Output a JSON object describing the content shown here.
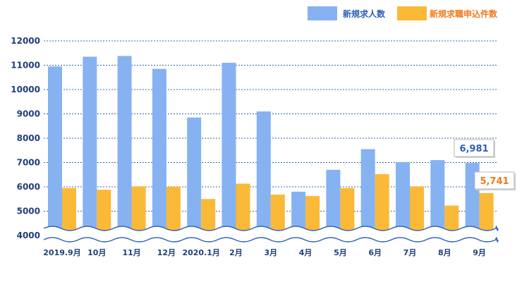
{
  "chart_data": {
    "type": "bar",
    "categories": [
      "2019.9月",
      "10月",
      "11月",
      "12月",
      "2020.1月",
      "2月",
      "3月",
      "4月",
      "5月",
      "6月",
      "7月",
      "8月",
      "9月"
    ],
    "series": [
      {
        "name": "新規求人数",
        "color": "#86b2f2",
        "values": [
          10950,
          11350,
          11380,
          10850,
          8850,
          11100,
          9100,
          5800,
          6700,
          7550,
          7020,
          7100,
          6981
        ]
      },
      {
        "name": "新規求職申込件数",
        "color": "#fbb938",
        "values": [
          5950,
          5880,
          6020,
          6000,
          5500,
          6130,
          5680,
          5620,
          5950,
          6520,
          6020,
          5230,
          5741
        ]
      }
    ],
    "yticks": [
      4000,
      5000,
      6000,
      7000,
      8000,
      9000,
      10000,
      11000,
      12000
    ],
    "ylim": [
      4000,
      12000
    ],
    "grid": true,
    "legend": "top-right",
    "axis_break": true,
    "callouts": [
      {
        "category": "9月",
        "series": "新規求人数",
        "text": "6,981",
        "color": "#2b5fb5"
      },
      {
        "category": "9月",
        "series": "新規求職申込件数",
        "text": "5,741",
        "color": "#f07a1c"
      }
    ]
  }
}
